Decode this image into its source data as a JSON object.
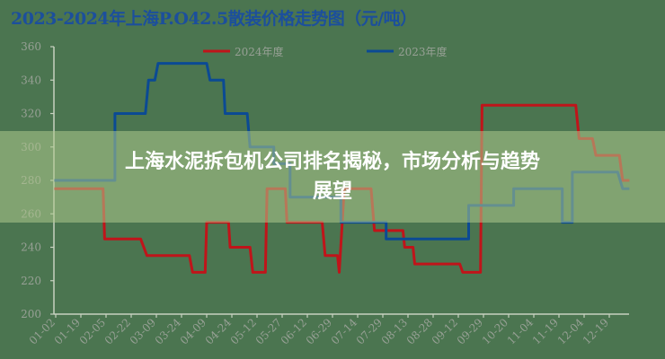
{
  "chart_data": {
    "type": "line",
    "title": "2023-2024年上海P.O42.5散装价格走势图（元/吨）",
    "xlabel": "",
    "ylabel": "",
    "ylim": [
      200,
      360
    ],
    "yticks": [
      200,
      220,
      240,
      260,
      280,
      300,
      320,
      340,
      360
    ],
    "categories": [
      "01-02",
      "01-19",
      "02-05",
      "02-22",
      "03-09",
      "03-24",
      "04-09",
      "04-24",
      "05-12",
      "05-27",
      "06-12",
      "06-29",
      "07-14",
      "07-29",
      "08-13",
      "08-28",
      "09-12",
      "09-29",
      "10-20",
      "11-04",
      "11-19",
      "12-04",
      "12-19"
    ],
    "grid": false,
    "legend_position": "top",
    "series": [
      {
        "name": "2024年度",
        "color": "#c0141a",
        "points": [
          [
            "01-01",
            275
          ],
          [
            "02-03",
            275
          ],
          [
            "02-04",
            245
          ],
          [
            "02-28",
            245
          ],
          [
            "03-03",
            235
          ],
          [
            "03-29",
            235
          ],
          [
            "03-31",
            225
          ],
          [
            "04-08",
            225
          ],
          [
            "04-09",
            255
          ],
          [
            "04-22",
            255
          ],
          [
            "04-23",
            240
          ],
          [
            "05-07",
            240
          ],
          [
            "05-09",
            225
          ],
          [
            "05-17",
            225
          ],
          [
            "05-18",
            275
          ],
          [
            "05-29",
            275
          ],
          [
            "05-30",
            255
          ],
          [
            "06-22",
            255
          ],
          [
            "06-24",
            235
          ],
          [
            "07-02",
            235
          ],
          [
            "07-03",
            225
          ],
          [
            "07-06",
            275
          ],
          [
            "07-22",
            275
          ],
          [
            "07-24",
            250
          ],
          [
            "08-10",
            250
          ],
          [
            "08-11",
            240
          ],
          [
            "08-16",
            240
          ],
          [
            "08-17",
            230
          ],
          [
            "09-13",
            230
          ],
          [
            "09-15",
            225
          ],
          [
            "09-27",
            225
          ],
          [
            "09-28",
            325
          ],
          [
            "11-29",
            325
          ],
          [
            "12-01",
            305
          ],
          [
            "12-09",
            305
          ],
          [
            "12-11",
            295
          ],
          [
            "12-25",
            295
          ],
          [
            "12-27",
            280
          ],
          [
            "12-31",
            280
          ]
        ]
      },
      {
        "name": "2023年度",
        "color": "#0b4a94",
        "points": [
          [
            "01-01",
            280
          ],
          [
            "02-11",
            280
          ],
          [
            "02-11",
            320
          ],
          [
            "03-02",
            320
          ],
          [
            "03-04",
            340
          ],
          [
            "03-08",
            340
          ],
          [
            "03-10",
            350
          ],
          [
            "04-09",
            350
          ],
          [
            "04-11",
            340
          ],
          [
            "04-19",
            340
          ],
          [
            "04-20",
            320
          ],
          [
            "05-05",
            320
          ],
          [
            "05-07",
            300
          ],
          [
            "05-22",
            300
          ],
          [
            "05-22",
            290
          ],
          [
            "06-01",
            290
          ],
          [
            "06-01",
            270
          ],
          [
            "07-04",
            270
          ],
          [
            "07-04",
            255
          ],
          [
            "07-31",
            255
          ],
          [
            "07-31",
            245
          ],
          [
            "09-19",
            245
          ],
          [
            "09-19",
            265
          ],
          [
            "10-23",
            265
          ],
          [
            "10-23",
            275
          ],
          [
            "11-21",
            275
          ],
          [
            "11-21",
            255
          ],
          [
            "11-27",
            255
          ],
          [
            "11-27",
            285
          ],
          [
            "12-24",
            285
          ],
          [
            "12-27",
            275
          ],
          [
            "12-31",
            275
          ]
        ]
      }
    ]
  },
  "overlay": {
    "headline_line1": "上海水泥拆包机公司排名揭秘，市场分析与趋势",
    "headline_line2": "展望",
    "background": "#afc88c"
  }
}
